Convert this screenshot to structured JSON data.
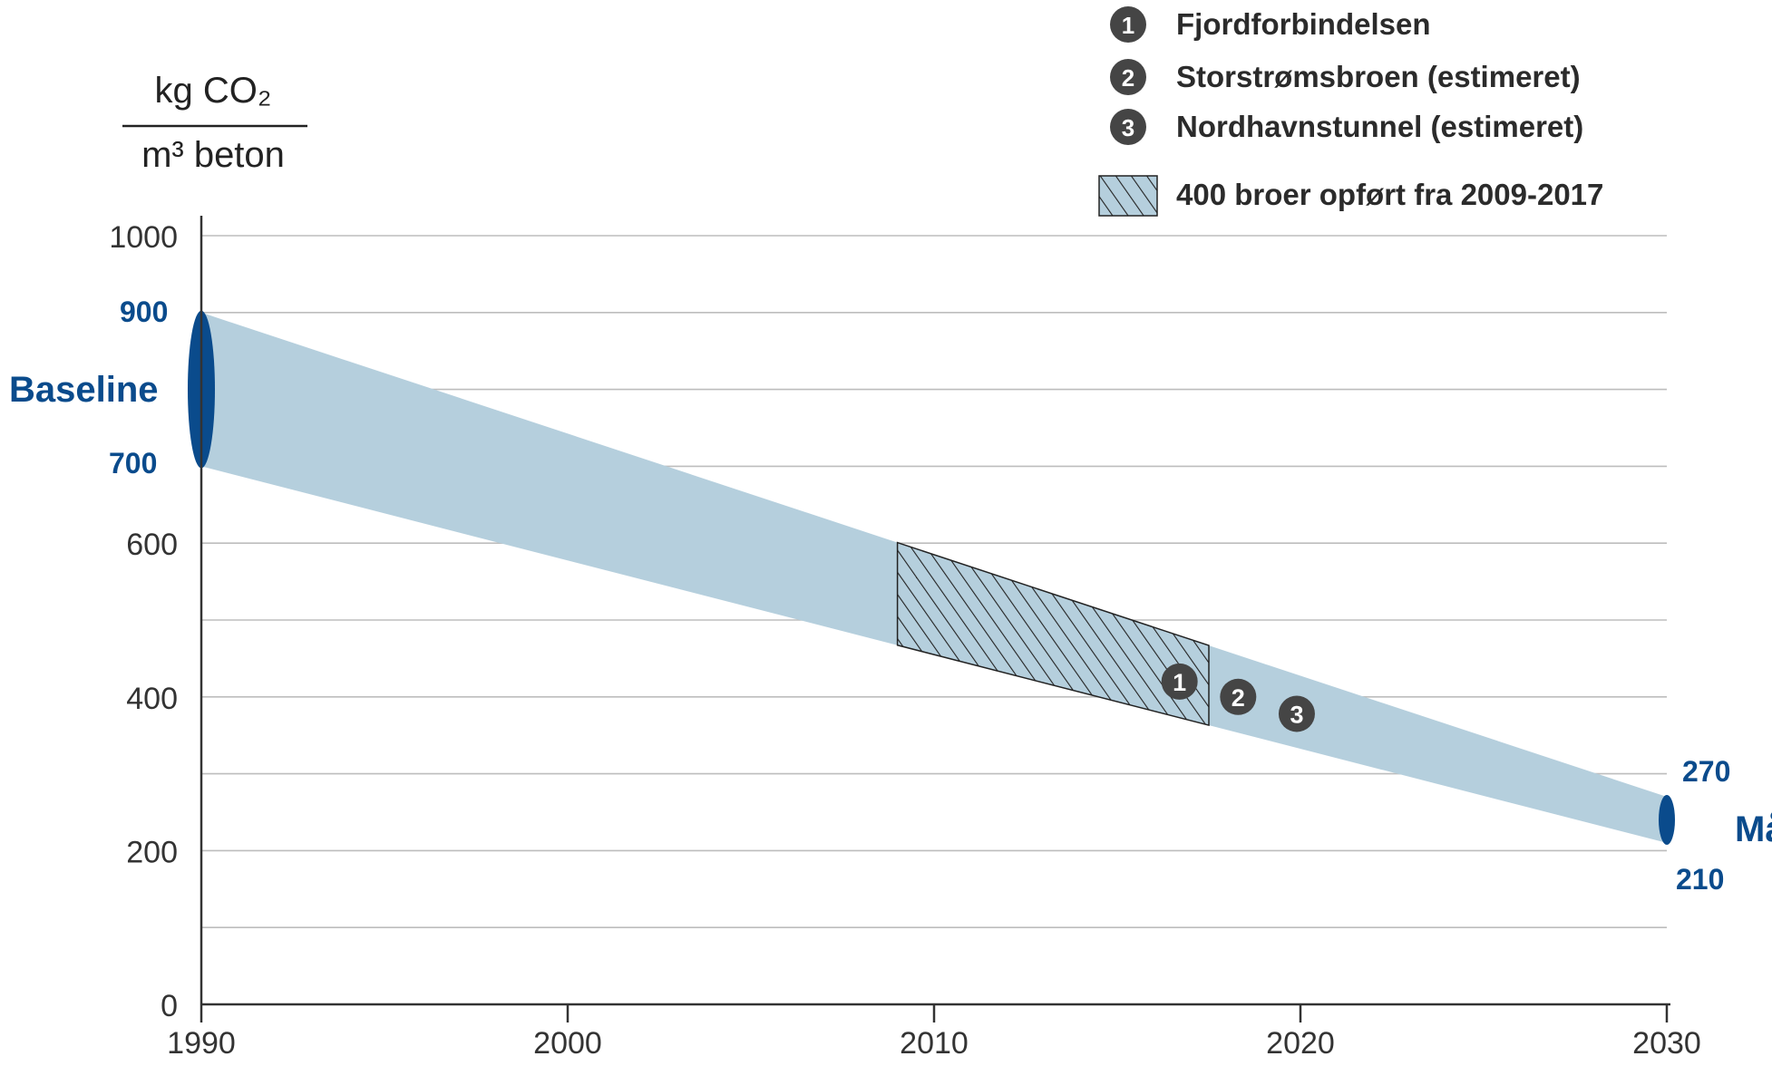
{
  "chart_data": {
    "type": "area",
    "title": "",
    "ylabel": {
      "numerator": "kg CO₂",
      "denominator": "m³ beton"
    },
    "xlabel": "",
    "xlim": [
      1990,
      2030
    ],
    "ylim": [
      0,
      1000
    ],
    "grid": true,
    "x_ticks": [
      1990,
      2000,
      2010,
      2020,
      2030
    ],
    "y_ticks": [
      0,
      200,
      400,
      600,
      1000
    ],
    "band": {
      "name": "",
      "x": [
        1990,
        2030
      ],
      "upper": [
        900,
        270
      ],
      "lower": [
        700,
        210
      ]
    },
    "baseline": {
      "label": "Baseline",
      "year": 1990,
      "upper_label": "900",
      "lower_label": "700",
      "upper": 900,
      "lower": 700
    },
    "target": {
      "label": "Mål",
      "year": 2030,
      "upper_label": "270",
      "lower_label": "210",
      "upper": 270,
      "lower": 210
    },
    "hatched_region": {
      "label": "400 broer opført fra 2009-2017",
      "x_start": 2009,
      "x_end": 2017.5
    },
    "markers": [
      {
        "number": "1",
        "label": "Fjordforbindelsen",
        "x": 2016.7,
        "y": 420
      },
      {
        "number": "2",
        "label": "Storstrømsbroen (estimeret)",
        "x": 2018.3,
        "y": 400
      },
      {
        "number": "3",
        "label": "Nordhavnstunnel (estimeret)",
        "x": 2019.9,
        "y": 378
      }
    ]
  },
  "colors": {
    "band": "#b5cfdd",
    "accent": "#0a4b8c",
    "marker": "#454545",
    "axis": "#333333",
    "grid": "#bdbdbd",
    "hatch": "#222222"
  }
}
